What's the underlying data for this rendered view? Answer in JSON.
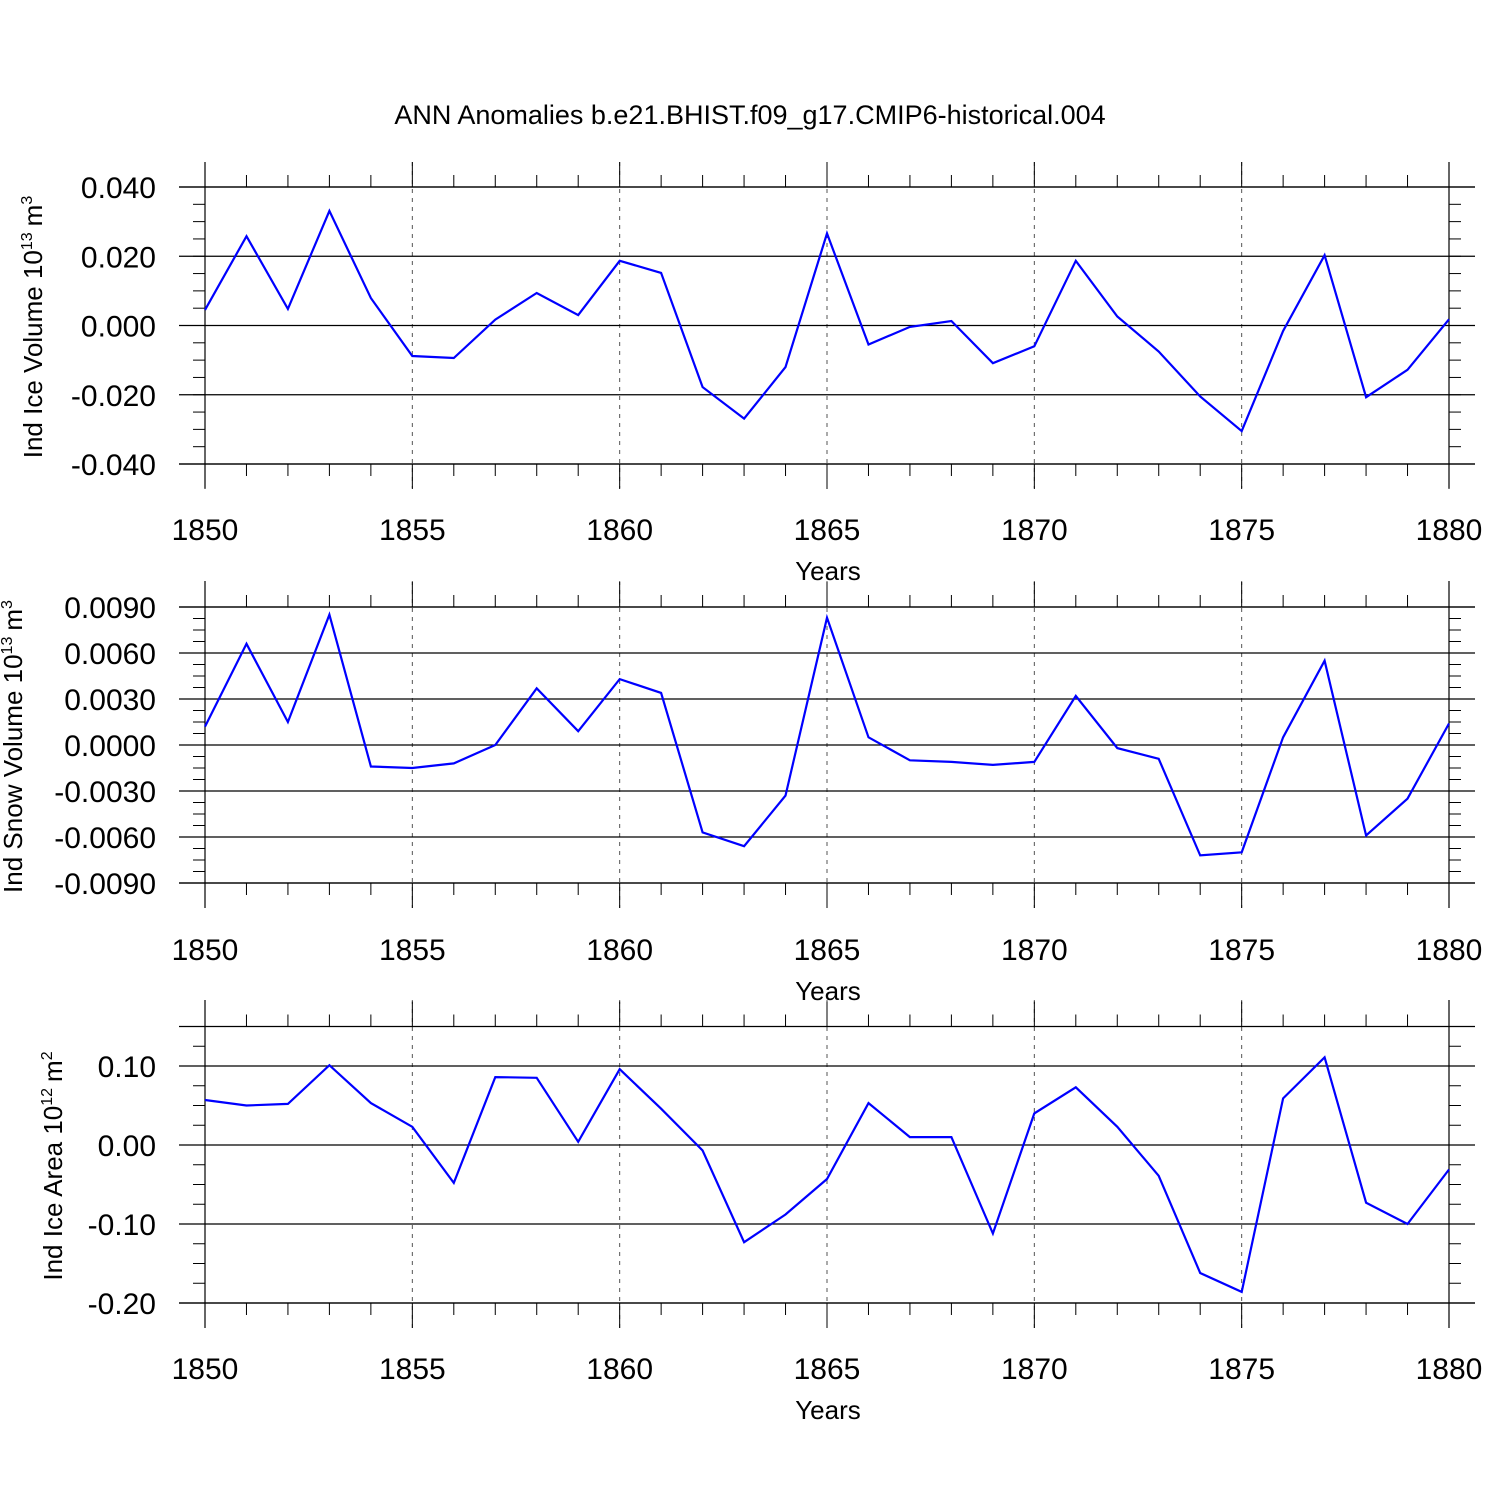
{
  "figure_title": "ANN Anomalies b.e21.BHIST.f09_g17.CMIP6-historical.004",
  "line_color": "#0000ff",
  "chart_data": [
    {
      "type": "line",
      "ylabel_main": "Ind Ice Volume 10",
      "ylabel_exp": "13",
      "ylabel_unit": "m",
      "ylabel_unit_exp": "3",
      "xlabel": "Years",
      "xlim": [
        1850,
        1880
      ],
      "ylim": [
        -0.04,
        0.04
      ],
      "yticks": [
        -0.04,
        -0.02,
        0.0,
        0.02,
        0.04
      ],
      "ytick_labels": [
        "-0.040",
        "-0.020",
        "0.000",
        "0.020",
        "0.040"
      ],
      "xticks": [
        1850,
        1855,
        1860,
        1865,
        1870,
        1875,
        1880
      ],
      "xtick_labels": [
        "1850",
        "1855",
        "1860",
        "1865",
        "1870",
        "1875",
        "1880"
      ],
      "grid_years": [
        1855,
        1860,
        1865,
        1870,
        1875
      ],
      "series": [
        {
          "name": "Ind Ice Volume",
          "x": [
            1850,
            1851,
            1852,
            1853,
            1854,
            1855,
            1856,
            1857,
            1858,
            1859,
            1860,
            1861,
            1862,
            1863,
            1864,
            1865,
            1866,
            1867,
            1868,
            1869,
            1870,
            1871,
            1872,
            1873,
            1874,
            1875,
            1876,
            1877,
            1878,
            1879,
            1880
          ],
          "values": [
            0.0045,
            0.0258,
            0.0048,
            0.0331,
            0.0079,
            -0.0088,
            -0.0094,
            0.0017,
            0.0094,
            0.003,
            0.0187,
            0.0152,
            -0.0178,
            -0.0269,
            -0.012,
            0.0266,
            -0.0055,
            -0.0004,
            0.0013,
            -0.0109,
            -0.006,
            0.0187,
            0.0026,
            -0.0075,
            -0.0205,
            -0.0305,
            -0.0016,
            0.0203,
            -0.0207,
            -0.0128,
            0.0018
          ]
        }
      ]
    },
    {
      "type": "line",
      "ylabel_main": "Ind Snow Volume 10",
      "ylabel_exp": "13",
      "ylabel_unit": "m",
      "ylabel_unit_exp": "3",
      "xlabel": "Years",
      "xlim": [
        1850,
        1880
      ],
      "ylim": [
        -0.009,
        0.009
      ],
      "yticks": [
        -0.009,
        -0.006,
        -0.003,
        0.0,
        0.003,
        0.006,
        0.009
      ],
      "ytick_labels": [
        "-0.0090",
        "-0.0060",
        "-0.0030",
        "0.0000",
        "0.0030",
        "0.0060",
        "0.0090"
      ],
      "xticks": [
        1850,
        1855,
        1860,
        1865,
        1870,
        1875,
        1880
      ],
      "xtick_labels": [
        "1850",
        "1855",
        "1860",
        "1865",
        "1870",
        "1875",
        "1880"
      ],
      "grid_years": [
        1855,
        1860,
        1865,
        1870,
        1875
      ],
      "series": [
        {
          "name": "Ind Snow Volume",
          "x": [
            1850,
            1851,
            1852,
            1853,
            1854,
            1855,
            1856,
            1857,
            1858,
            1859,
            1860,
            1861,
            1862,
            1863,
            1864,
            1865,
            1866,
            1867,
            1868,
            1869,
            1870,
            1871,
            1872,
            1873,
            1874,
            1875,
            1876,
            1877,
            1878,
            1879,
            1880
          ],
          "values": [
            0.0012,
            0.0066,
            0.0015,
            0.0085,
            -0.0014,
            -0.0015,
            -0.0012,
            0.0,
            0.0037,
            0.0009,
            0.0043,
            0.0034,
            -0.0057,
            -0.0066,
            -0.0033,
            0.0083,
            0.0005,
            -0.001,
            -0.0011,
            -0.0013,
            -0.0011,
            0.0032,
            -0.0002,
            -0.0009,
            -0.0072,
            -0.007,
            0.0005,
            0.0055,
            -0.0059,
            -0.0035,
            0.0014
          ]
        }
      ]
    },
    {
      "type": "line",
      "ylabel_main": "Ind Ice Area 10",
      "ylabel_exp": "12",
      "ylabel_unit": "m",
      "ylabel_unit_exp": "2",
      "xlabel": "Years",
      "xlim": [
        1850,
        1880
      ],
      "ylim": [
        -0.2,
        0.15
      ],
      "yticks": [
        -0.2,
        -0.1,
        0.0,
        0.1
      ],
      "ytick_labels": [
        "-0.20",
        "-0.10",
        "0.00",
        "0.10"
      ],
      "xticks": [
        1850,
        1855,
        1860,
        1865,
        1870,
        1875,
        1880
      ],
      "xtick_labels": [
        "1850",
        "1855",
        "1860",
        "1865",
        "1870",
        "1875",
        "1880"
      ],
      "grid_years": [
        1855,
        1860,
        1865,
        1870,
        1875
      ],
      "series": [
        {
          "name": "Ind Ice Area",
          "x": [
            1850,
            1851,
            1852,
            1853,
            1854,
            1855,
            1856,
            1857,
            1858,
            1859,
            1860,
            1861,
            1862,
            1863,
            1864,
            1865,
            1866,
            1867,
            1868,
            1869,
            1870,
            1871,
            1872,
            1873,
            1874,
            1875,
            1876,
            1877,
            1878,
            1879,
            1880
          ],
          "values": [
            0.057,
            0.05,
            0.052,
            0.101,
            0.053,
            0.023,
            -0.048,
            0.086,
            0.085,
            0.004,
            0.096,
            0.046,
            -0.007,
            -0.123,
            -0.088,
            -0.043,
            0.053,
            0.01,
            0.01,
            -0.112,
            0.04,
            0.073,
            0.023,
            -0.039,
            -0.162,
            -0.186,
            0.059,
            0.111,
            -0.073,
            -0.1,
            -0.031
          ]
        }
      ]
    }
  ]
}
